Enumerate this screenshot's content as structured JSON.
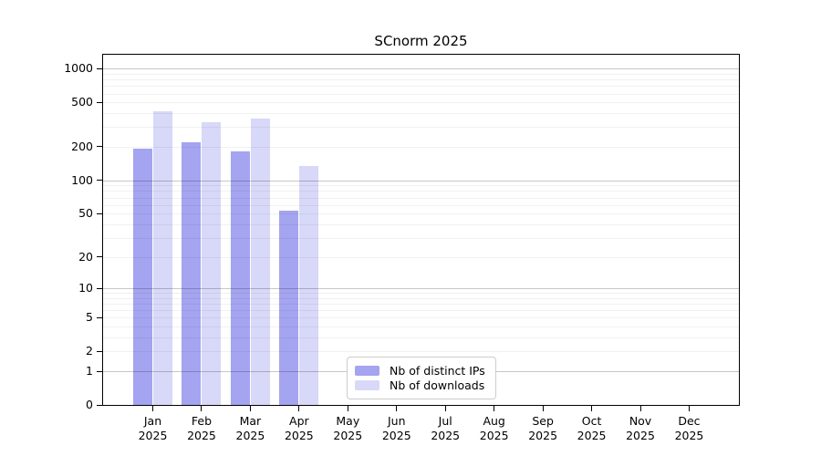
{
  "chart_data": {
    "type": "bar",
    "title": "SCnorm 2025",
    "xtick_year": "2025",
    "categories": [
      "Jan",
      "Feb",
      "Mar",
      "Apr",
      "May",
      "Jun",
      "Jul",
      "Aug",
      "Sep",
      "Oct",
      "Nov",
      "Dec"
    ],
    "series": [
      {
        "key": "distinct-ips",
        "name": "Nb of distinct IPs",
        "color": "#a4a4f0",
        "values": [
          191,
          220,
          182,
          53,
          0,
          0,
          0,
          0,
          0,
          0,
          0,
          0
        ]
      },
      {
        "key": "downloads",
        "name": "Nb of downloads",
        "color": "#d8d8f8",
        "values": [
          415,
          332,
          356,
          135,
          0,
          0,
          0,
          0,
          0,
          0,
          0,
          0
        ]
      }
    ],
    "yscale": "log1p",
    "ylim": [
      0,
      1332
    ],
    "yticks": [
      0,
      1,
      2,
      5,
      10,
      20,
      50,
      100,
      200,
      500,
      1000
    ],
    "grid": {
      "major": [
        1,
        10,
        100,
        1000
      ],
      "minor": [
        2,
        3,
        4,
        5,
        6,
        7,
        8,
        9,
        20,
        30,
        40,
        50,
        60,
        70,
        80,
        90,
        200,
        300,
        400,
        500,
        600,
        700,
        800,
        900
      ],
      "major_color": "rgba(0,0,0,0.22)",
      "minor_color": "rgba(0,0,0,0.055)"
    },
    "legend_position": "lower-center-inside",
    "axis_color": "#000000",
    "background_color": "#ffffff"
  }
}
